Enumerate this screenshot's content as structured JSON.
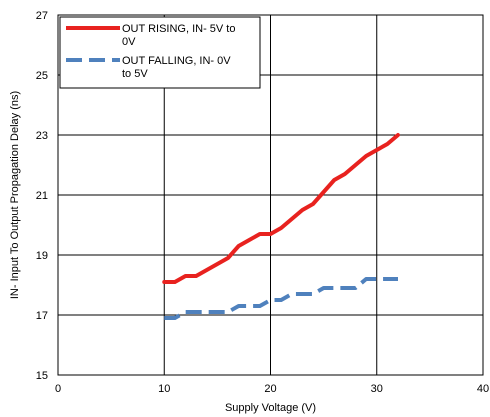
{
  "chart_data": {
    "type": "line",
    "xlabel": "Supply Voltage (V)",
    "ylabel": "IN- Input To Output Propagation Delay (ns)",
    "xlim": [
      0,
      40
    ],
    "ylim": [
      15,
      27
    ],
    "x_ticks": [
      0,
      10,
      20,
      30,
      40
    ],
    "y_ticks": [
      15,
      17,
      19,
      21,
      23,
      25,
      27
    ],
    "x_tick_labels": [
      "0",
      "10",
      "20",
      "30",
      "40"
    ],
    "y_tick_labels": [
      "15",
      "17",
      "19",
      "21",
      "23",
      "25",
      "27"
    ],
    "grid": true,
    "legend_position": "top-left",
    "series": [
      {
        "name": "OUT RISING, IN- 5V to 0V",
        "legend_lines": [
          "OUT RISING, IN- 5V to",
          "0V"
        ],
        "color": "#e8221f",
        "style": "solid",
        "x": [
          10,
          11,
          12,
          13,
          14,
          15,
          16,
          17,
          18,
          19,
          20,
          21,
          22,
          23,
          24,
          25,
          26,
          27,
          28,
          29,
          30,
          31,
          32
        ],
        "values": [
          18.1,
          18.1,
          18.3,
          18.3,
          18.5,
          18.7,
          18.9,
          19.3,
          19.5,
          19.7,
          19.7,
          19.9,
          20.2,
          20.5,
          20.7,
          21.1,
          21.5,
          21.7,
          22.0,
          22.3,
          22.5,
          22.7,
          23.0
        ]
      },
      {
        "name": "OUT FALLING, IN- 0V to 5V",
        "legend_lines": [
          "OUT FALLING, IN- 0V",
          "to 5V"
        ],
        "color": "#4f81bd",
        "style": "dashed",
        "x": [
          10,
          11,
          12,
          13,
          14,
          15,
          16,
          17,
          18,
          19,
          20,
          21,
          22,
          23,
          24,
          25,
          26,
          27,
          28,
          29,
          30,
          31,
          32
        ],
        "values": [
          16.9,
          16.9,
          17.1,
          17.1,
          17.1,
          17.1,
          17.1,
          17.3,
          17.3,
          17.3,
          17.5,
          17.5,
          17.7,
          17.7,
          17.7,
          17.9,
          17.9,
          17.9,
          17.9,
          18.2,
          18.2,
          18.2,
          18.2
        ]
      }
    ]
  }
}
